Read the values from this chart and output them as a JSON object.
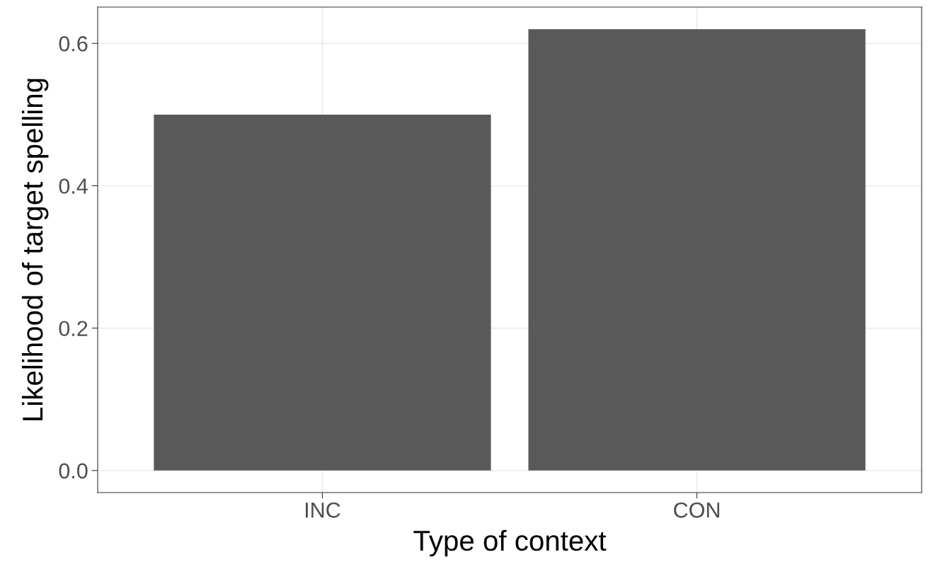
{
  "chart_data": {
    "type": "bar",
    "xlabel": "Type of context",
    "ylabel": "Likelihood of target spelling",
    "categories": [
      "INC",
      "CON"
    ],
    "values": [
      0.5,
      0.62
    ],
    "color": "#595959",
    "ylim": [
      -0.031,
      0.651
    ],
    "yticks": [
      {
        "value": 0,
        "label": "0.0"
      },
      {
        "value": 0.2,
        "label": "0.2"
      },
      {
        "value": 0.4,
        "label": "0.4"
      },
      {
        "value": 0.6,
        "label": "0.6"
      }
    ],
    "grid": true
  }
}
